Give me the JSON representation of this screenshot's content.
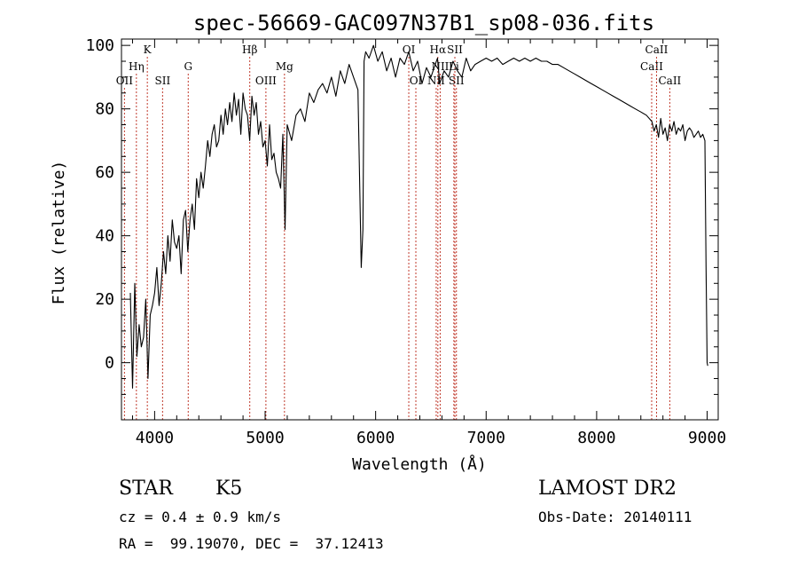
{
  "chart_data": {
    "type": "line",
    "title": "spec-56669-GAC097N37B1_sp08-036.fits",
    "xlabel": "Wavelength (Å)",
    "ylabel": "Flux (relative)",
    "xlim": [
      3700,
      9100
    ],
    "ylim": [
      -18,
      102
    ],
    "xticks": [
      4000,
      5000,
      6000,
      7000,
      8000,
      9000
    ],
    "yticks": [
      0,
      20,
      40,
      60,
      80,
      100
    ],
    "grid": false,
    "line_color": "#000000",
    "marker_color": "#c0392b",
    "series": [
      {
        "x": [
          3780,
          3800,
          3820,
          3840,
          3860,
          3880,
          3900,
          3920,
          3940,
          3960,
          3980,
          4000,
          4020,
          4040,
          4060,
          4080,
          4100,
          4120,
          4140,
          4160,
          4180,
          4200,
          4220,
          4240,
          4260,
          4280,
          4300,
          4320,
          4340,
          4360,
          4380,
          4400,
          4420,
          4440,
          4460,
          4480,
          4500,
          4520,
          4540,
          4560,
          4580,
          4600,
          4620,
          4640,
          4660,
          4680,
          4700,
          4720,
          4740,
          4760,
          4780,
          4800,
          4820,
          4840,
          4860,
          4880,
          4900,
          4920,
          4940,
          4960,
          4980,
          5000,
          5020,
          5040,
          5060,
          5080,
          5100,
          5120,
          5140,
          5160,
          5180,
          5200,
          5240,
          5280,
          5320,
          5360,
          5400,
          5440,
          5480,
          5520,
          5560,
          5600,
          5640,
          5680,
          5720,
          5760,
          5800,
          5840,
          5870,
          5885,
          5895,
          5910,
          5940,
          5980,
          6020,
          6060,
          6100,
          6140,
          6180,
          6220,
          6260,
          6300,
          6340,
          6380,
          6420,
          6460,
          6500,
          6540,
          6560,
          6580,
          6620,
          6660,
          6700,
          6740,
          6780,
          6820,
          6860,
          6900,
          6950,
          7000,
          7050,
          7100,
          7150,
          7200,
          7250,
          7300,
          7350,
          7400,
          7450,
          7500,
          7550,
          7600,
          7650,
          7700,
          7750,
          7800,
          7850,
          7900,
          7950,
          8000,
          8050,
          8100,
          8150,
          8200,
          8250,
          8300,
          8350,
          8400,
          8450,
          8500,
          8520,
          8540,
          8560,
          8580,
          8600,
          8620,
          8640,
          8660,
          8680,
          8700,
          8720,
          8740,
          8760,
          8780,
          8800,
          8820,
          8840,
          8860,
          8880,
          8900,
          8920,
          8940,
          8960,
          8980,
          8990,
          9000,
          9005
        ],
        "y": [
          22,
          -8,
          25,
          2,
          12,
          5,
          8,
          20,
          -5,
          15,
          18,
          22,
          30,
          18,
          25,
          35,
          28,
          40,
          32,
          45,
          38,
          36,
          40,
          28,
          45,
          48,
          35,
          45,
          50,
          42,
          58,
          52,
          60,
          55,
          62,
          70,
          65,
          72,
          75,
          68,
          70,
          78,
          72,
          80,
          75,
          82,
          76,
          85,
          78,
          83,
          72,
          85,
          80,
          78,
          70,
          84,
          78,
          82,
          72,
          76,
          68,
          70,
          62,
          75,
          64,
          66,
          60,
          58,
          55,
          72,
          42,
          75,
          70,
          78,
          80,
          76,
          85,
          82,
          86,
          88,
          85,
          90,
          84,
          92,
          88,
          94,
          90,
          86,
          30,
          42,
          95,
          98,
          96,
          100,
          95,
          98,
          92,
          96,
          90,
          96,
          94,
          98,
          92,
          95,
          88,
          93,
          90,
          94,
          96,
          88,
          92,
          90,
          95,
          92,
          90,
          96,
          92,
          94,
          95,
          96,
          95,
          96,
          94,
          95,
          96,
          95,
          96,
          95,
          96,
          95,
          95,
          94,
          94,
          93,
          92,
          91,
          90,
          89,
          88,
          87,
          86,
          85,
          84,
          83,
          82,
          81,
          80,
          79,
          78,
          76,
          73,
          75,
          71,
          77,
          72,
          74,
          70,
          75,
          73,
          76,
          72,
          74,
          73,
          75,
          70,
          73,
          74,
          73,
          71,
          72,
          73,
          71,
          72,
          70,
          30,
          0,
          -1
        ]
      }
    ],
    "line_markers": [
      {
        "label": "OII",
        "x": 3727,
        "row": 3
      },
      {
        "label": "Hη",
        "x": 3835,
        "row": 2
      },
      {
        "label": "K",
        "x": 3934,
        "row": 1
      },
      {
        "label": "SII",
        "x": 4072,
        "row": 3
      },
      {
        "label": "G",
        "x": 4304,
        "row": 2
      },
      {
        "label": "Hβ",
        "x": 4861,
        "row": 1
      },
      {
        "label": "OIII",
        "x": 5007,
        "row": 3
      },
      {
        "label": "Mg",
        "x": 5175,
        "row": 2
      },
      {
        "label": "OI",
        "x": 6300,
        "row": 1
      },
      {
        "label": "OI",
        "x": 6364,
        "row": 3
      },
      {
        "label": "Hα",
        "x": 6563,
        "row": 1
      },
      {
        "label": "NII",
        "x": 6548,
        "row": 3
      },
      {
        "label": "NII",
        "x": 6584,
        "row": 2
      },
      {
        "label": "SII",
        "x": 6717,
        "row": 1
      },
      {
        "label": "SII",
        "x": 6731,
        "row": 3
      },
      {
        "label": "Li",
        "x": 6708,
        "row": 2
      },
      {
        "label": "CaII",
        "x": 8498,
        "row": 2
      },
      {
        "label": "CaII",
        "x": 8542,
        "row": 1
      },
      {
        "label": "CaII",
        "x": 8662,
        "row": 3
      }
    ]
  },
  "info": {
    "class": "STAR",
    "subclass": "K5",
    "survey": "LAMOST DR2",
    "cz": "cz = 0.4 ± 0.9 km/s",
    "obs_date": "Obs-Date: 20140111",
    "coords": "RA =  99.19070, DEC =  37.12413"
  }
}
